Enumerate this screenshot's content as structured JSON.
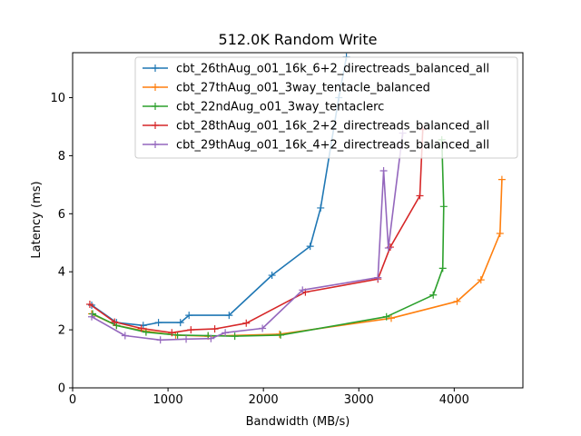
{
  "chart_data": {
    "type": "line",
    "title": "512.0K  Random Write",
    "xlabel": "Bandwidth (MB/s)",
    "ylabel": "Latency (ms)",
    "xlim": [
      0,
      4720
    ],
    "ylim": [
      0,
      11.55
    ],
    "xticks": [
      0,
      1000,
      2000,
      3000,
      4000
    ],
    "yticks": [
      0,
      2,
      4,
      6,
      8,
      10
    ],
    "grid": false,
    "legend_position": "top-right",
    "series": [
      {
        "name": "cbt_26thAug_o01_16k_6+2_directreads_balanced_all",
        "color": "#1f77b4",
        "x": [
          200,
          460,
          740,
          900,
          1130,
          1220,
          1640,
          2090,
          2490,
          2600,
          2790,
          2870
        ],
        "y": [
          2.85,
          2.25,
          2.15,
          2.25,
          2.25,
          2.5,
          2.5,
          3.88,
          4.88,
          6.2,
          10.0,
          11.4
        ]
      },
      {
        "name": "cbt_27thAug_o01_3way_tentacle_balanced",
        "color": "#ff7f0e",
        "x": [
          200,
          460,
          770,
          1080,
          1420,
          2170,
          3340,
          4030,
          4280,
          4480,
          4500
        ],
        "y": [
          2.55,
          2.15,
          1.95,
          1.82,
          1.78,
          1.85,
          2.4,
          2.98,
          3.72,
          5.32,
          7.18
        ]
      },
      {
        "name": "cbt_22ndAug_o01_3way_tentaclerc",
        "color": "#2ca02c",
        "x": [
          210,
          460,
          770,
          1100,
          1420,
          1700,
          2180,
          3290,
          3780,
          3880,
          3890,
          3870
        ],
        "y": [
          2.55,
          2.15,
          1.92,
          1.82,
          1.8,
          1.78,
          1.82,
          2.45,
          3.2,
          4.12,
          6.25,
          8.55
        ]
      },
      {
        "name": "cbt_28thAug_o01_16k_2+2_directreads_balanced_all",
        "color": "#d62728",
        "x": [
          180,
          440,
          720,
          1040,
          1240,
          1490,
          1820,
          2440,
          3200,
          3330,
          3640,
          3670
        ],
        "y": [
          2.88,
          2.27,
          2.05,
          1.9,
          2.0,
          2.03,
          2.23,
          3.3,
          3.75,
          4.85,
          6.62,
          8.9
        ]
      },
      {
        "name": "cbt_29thAug_o01_16k_4+2_directreads_balanced_all",
        "color": "#9467bd",
        "x": [
          200,
          550,
          920,
          1190,
          1450,
          1600,
          1990,
          2410,
          3200,
          3260,
          3310,
          3460
        ],
        "y": [
          2.45,
          1.8,
          1.65,
          1.68,
          1.7,
          1.9,
          2.05,
          3.37,
          3.8,
          7.48,
          4.82,
          8.78
        ]
      }
    ]
  }
}
